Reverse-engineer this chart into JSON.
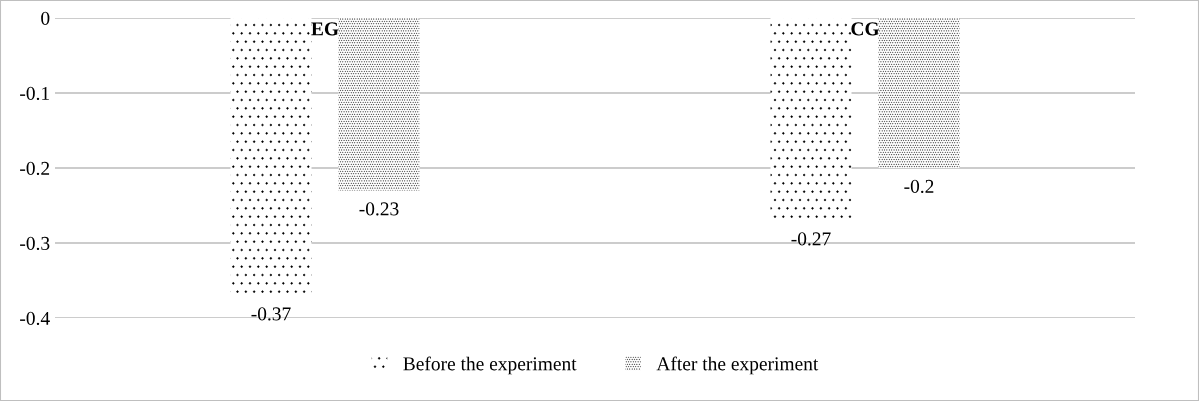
{
  "chart_data": {
    "type": "bar",
    "categories": [
      "EG",
      "CG"
    ],
    "series": [
      {
        "name": "Before the experiment",
        "color": "#000000",
        "values": [
          -0.37,
          -0.27
        ]
      },
      {
        "name": "After the experiment",
        "color": "#000000",
        "values": [
          -0.23,
          -0.2
        ]
      }
    ],
    "ylim": [
      -0.4,
      0
    ],
    "yticks": [
      0,
      -0.1,
      -0.2,
      -0.3,
      -0.4
    ],
    "grid": "y",
    "legend": "bottom",
    "data_labels": true
  }
}
